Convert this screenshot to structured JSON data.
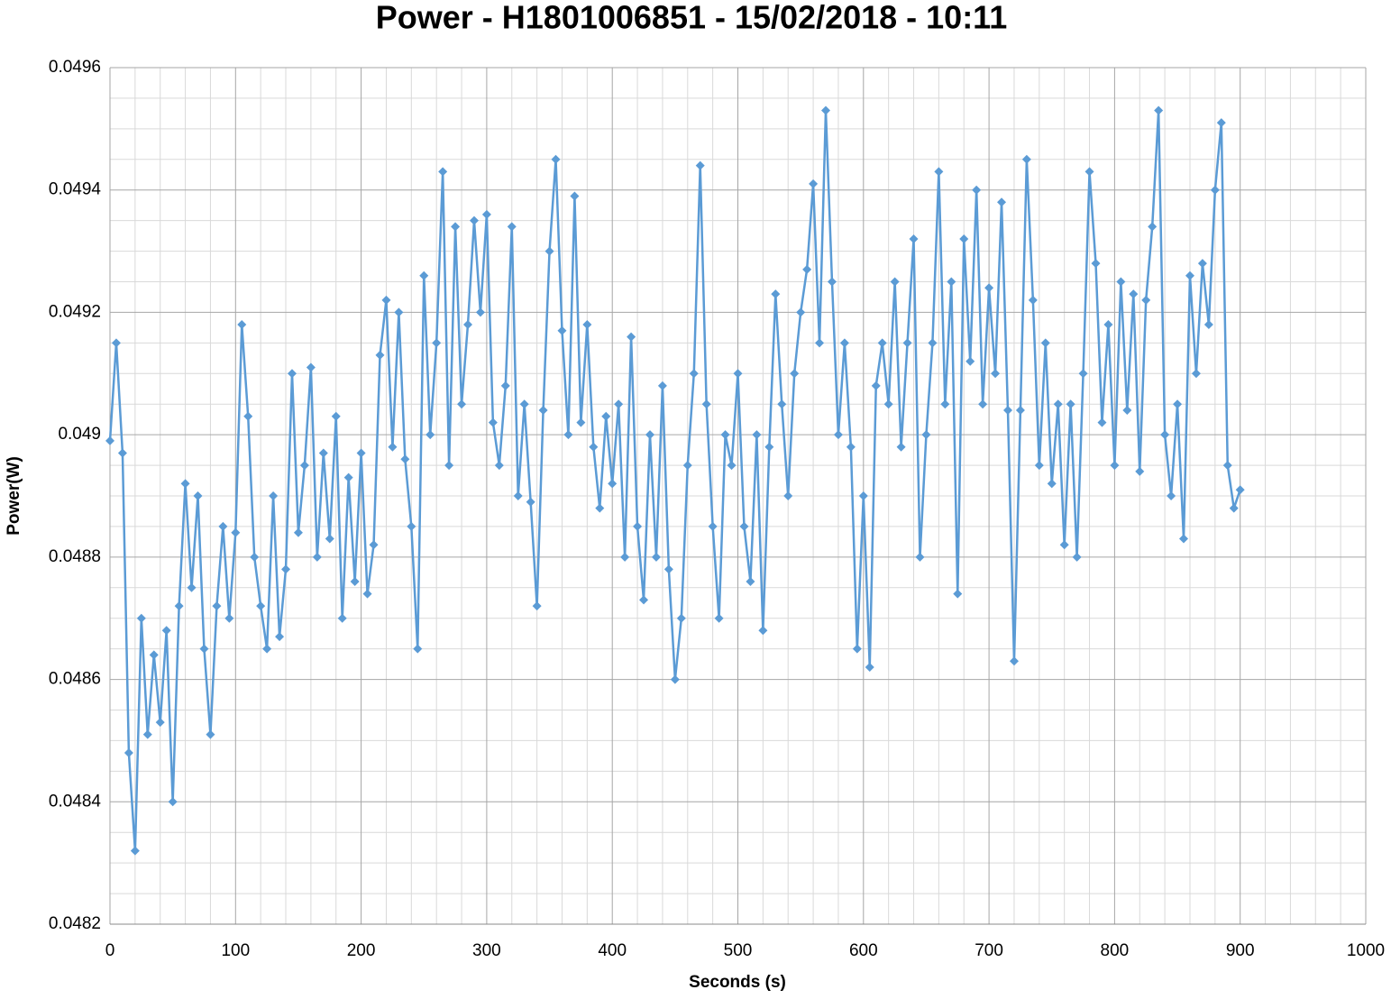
{
  "chart_data": {
    "type": "line",
    "title": "Power - H1801006851 - 15/02/2018 - 10:11",
    "x_label": "Seconds (s)",
    "y_label": "Power(W)",
    "color": "#5b9bd5",
    "marker": "diamond",
    "grid": true,
    "xlim": [
      0,
      1000
    ],
    "xticks": [
      0,
      100,
      200,
      300,
      400,
      500,
      600,
      700,
      800,
      900,
      1000
    ],
    "ylim": [
      0.0482,
      0.0496
    ],
    "yticks": [
      0.0482,
      0.0484,
      0.0486,
      0.0488,
      0.049,
      0.0492,
      0.0494,
      0.0496
    ],
    "x": [
      0,
      5,
      10,
      15,
      20,
      25,
      30,
      35,
      40,
      45,
      50,
      55,
      60,
      65,
      70,
      75,
      80,
      85,
      90,
      95,
      100,
      105,
      110,
      115,
      120,
      125,
      130,
      135,
      140,
      145,
      150,
      155,
      160,
      165,
      170,
      175,
      180,
      185,
      190,
      195,
      200,
      205,
      210,
      215,
      220,
      225,
      230,
      235,
      240,
      245,
      250,
      255,
      260,
      265,
      270,
      275,
      280,
      285,
      290,
      295,
      300,
      305,
      310,
      315,
      320,
      325,
      330,
      335,
      340,
      345,
      350,
      355,
      360,
      365,
      370,
      375,
      380,
      385,
      390,
      395,
      400,
      405,
      410,
      415,
      420,
      425,
      430,
      435,
      440,
      445,
      450,
      455,
      460,
      465,
      470,
      475,
      480,
      485,
      490,
      495,
      500,
      505,
      510,
      515,
      520,
      525,
      530,
      535,
      540,
      545,
      550,
      555,
      560,
      565,
      570,
      575,
      580,
      585,
      590,
      595,
      600,
      605,
      610,
      615,
      620,
      625,
      630,
      635,
      640,
      645,
      650,
      655,
      660,
      665,
      670,
      675,
      680,
      685,
      690,
      695,
      700,
      705,
      710,
      715,
      720,
      725,
      730,
      735,
      740,
      745,
      750,
      755,
      760,
      765,
      770,
      775,
      780,
      785,
      790,
      795,
      800,
      805,
      810,
      815,
      820,
      825,
      830,
      835,
      840,
      845,
      850,
      855,
      860,
      865,
      870,
      875,
      880,
      885,
      890,
      895,
      900
    ],
    "values": [
      0.04899,
      0.04915,
      0.04897,
      0.04848,
      0.04832,
      0.0487,
      0.04851,
      0.04864,
      0.04853,
      0.04868,
      0.0484,
      0.04872,
      0.04892,
      0.04875,
      0.0489,
      0.04865,
      0.04851,
      0.04872,
      0.04885,
      0.0487,
      0.04884,
      0.04918,
      0.04903,
      0.0488,
      0.04872,
      0.04865,
      0.0489,
      0.04867,
      0.04878,
      0.0491,
      0.04884,
      0.04895,
      0.04911,
      0.0488,
      0.04897,
      0.04883,
      0.04903,
      0.0487,
      0.04893,
      0.04876,
      0.04897,
      0.04874,
      0.04882,
      0.04913,
      0.04922,
      0.04898,
      0.0492,
      0.04896,
      0.04885,
      0.04865,
      0.04926,
      0.049,
      0.04915,
      0.04943,
      0.04895,
      0.04934,
      0.04905,
      0.04918,
      0.04935,
      0.0492,
      0.04936,
      0.04902,
      0.04895,
      0.04908,
      0.04934,
      0.0489,
      0.04905,
      0.04889,
      0.04872,
      0.04904,
      0.0493,
      0.04945,
      0.04917,
      0.049,
      0.04939,
      0.04902,
      0.04918,
      0.04898,
      0.04888,
      0.04903,
      0.04892,
      0.04905,
      0.0488,
      0.04916,
      0.04885,
      0.04873,
      0.049,
      0.0488,
      0.04908,
      0.04878,
      0.0486,
      0.0487,
      0.04895,
      0.0491,
      0.04944,
      0.04905,
      0.04885,
      0.0487,
      0.049,
      0.04895,
      0.0491,
      0.04885,
      0.04876,
      0.049,
      0.04868,
      0.04898,
      0.04923,
      0.04905,
      0.0489,
      0.0491,
      0.0492,
      0.04927,
      0.04941,
      0.04915,
      0.04953,
      0.04925,
      0.049,
      0.04915,
      0.04898,
      0.04865,
      0.0489,
      0.04862,
      0.04908,
      0.04915,
      0.04905,
      0.04925,
      0.04898,
      0.04915,
      0.04932,
      0.0488,
      0.049,
      0.04915,
      0.04943,
      0.04905,
      0.04925,
      0.04874,
      0.04932,
      0.04912,
      0.0494,
      0.04905,
      0.04924,
      0.0491,
      0.04938,
      0.04904,
      0.04863,
      0.04904,
      0.04945,
      0.04922,
      0.04895,
      0.04915,
      0.04892,
      0.04905,
      0.04882,
      0.04905,
      0.0488,
      0.0491,
      0.04943,
      0.04928,
      0.04902,
      0.04918,
      0.04895,
      0.04925,
      0.04904,
      0.04923,
      0.04894,
      0.04922,
      0.04934,
      0.04953,
      0.049,
      0.0489,
      0.04905,
      0.04883,
      0.04926,
      0.0491,
      0.04928,
      0.04918,
      0.0494,
      0.04951,
      0.04895,
      0.04888,
      0.04891
    ]
  }
}
